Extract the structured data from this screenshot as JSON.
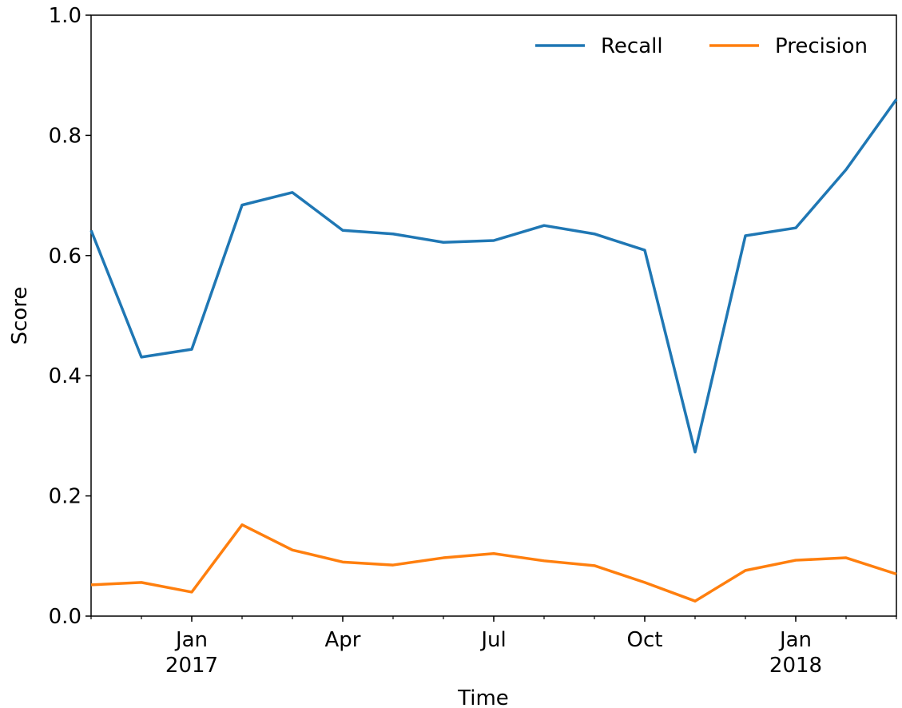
{
  "chart_data": {
    "type": "line",
    "xlabel": "Time",
    "ylabel": "Score",
    "x": [
      "2016-11",
      "2016-12",
      "2017-01",
      "2017-02",
      "2017-03",
      "2017-04",
      "2017-05",
      "2017-06",
      "2017-07",
      "2017-08",
      "2017-09",
      "2017-10",
      "2017-11",
      "2017-12",
      "2018-01",
      "2018-02",
      "2018-03"
    ],
    "series": [
      {
        "name": "Recall",
        "color": "#1f77b4",
        "values": [
          0.642,
          0.431,
          0.444,
          0.684,
          0.705,
          0.642,
          0.636,
          0.622,
          0.625,
          0.65,
          0.636,
          0.609,
          0.273,
          0.633,
          0.646,
          0.743,
          0.86
        ]
      },
      {
        "name": "Precision",
        "color": "#ff7f0e",
        "values": [
          0.052,
          0.056,
          0.04,
          0.152,
          0.11,
          0.09,
          0.085,
          0.097,
          0.104,
          0.092,
          0.084,
          0.056,
          0.025,
          0.076,
          0.093,
          0.097,
          0.07
        ]
      }
    ],
    "xlim": [
      "2016-11",
      "2018-03"
    ],
    "xticks": [
      {
        "value": "2017-01",
        "label": "Jan\n2017"
      },
      {
        "value": "2017-04",
        "label": "Apr"
      },
      {
        "value": "2017-07",
        "label": "Jul"
      },
      {
        "value": "2017-10",
        "label": "Oct"
      },
      {
        "value": "2018-01",
        "label": "Jan\n2018"
      }
    ],
    "ylim": [
      0,
      1
    ],
    "yticks": [
      {
        "value": 0,
        "label": "0.0"
      },
      {
        "value": 0.2,
        "label": "0.2"
      },
      {
        "value": 0.4,
        "label": "0.4"
      },
      {
        "value": 0.6,
        "label": "0.6"
      },
      {
        "value": 0.8,
        "label": "0.8"
      },
      {
        "value": 1,
        "label": "1.0"
      }
    ],
    "legend": "upper right"
  }
}
